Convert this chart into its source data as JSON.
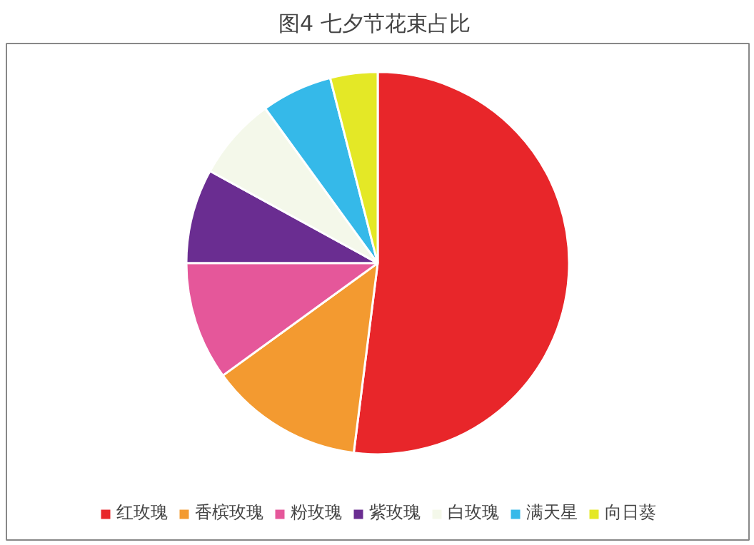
{
  "chart_data": {
    "type": "pie",
    "title": "图4  七夕节花束占比",
    "categories": [
      "红玫瑰",
      "香槟玫瑰",
      "粉玫瑰",
      "紫玫瑰",
      "白玫瑰",
      "满天星",
      "向日葵"
    ],
    "values": [
      52,
      13,
      10,
      8,
      7,
      6,
      4
    ],
    "colors": [
      "#e8262a",
      "#f39a30",
      "#e5579a",
      "#6a2d91",
      "#f4f8ea",
      "#35b9e9",
      "#e4e826"
    ],
    "legend": "bottom"
  }
}
